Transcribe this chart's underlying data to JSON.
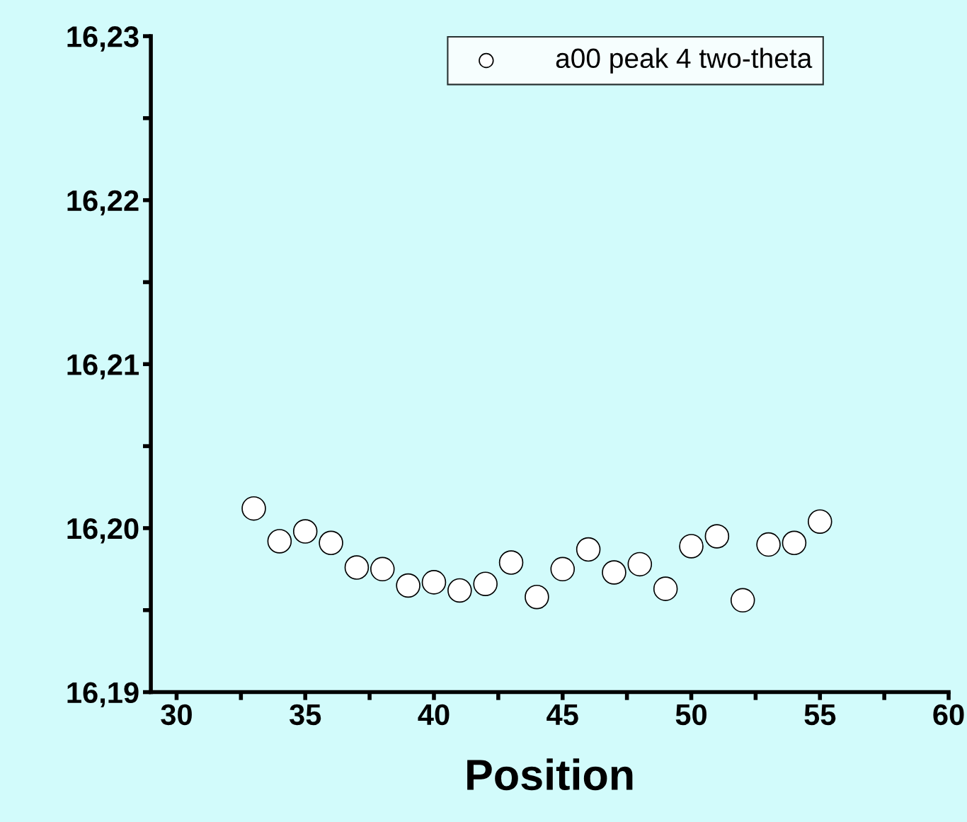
{
  "chart_data": {
    "type": "scatter",
    "xlabel": "Position",
    "x": [
      33,
      34,
      35,
      36,
      37,
      38,
      39,
      40,
      41,
      42,
      43,
      44,
      45,
      46,
      47,
      48,
      49,
      50,
      51,
      52,
      53,
      54,
      55
    ],
    "series": [
      {
        "name": "a00 peak 4 two-theta",
        "color": "#000000",
        "values": [
          16.2012,
          16.1992,
          16.1998,
          16.1991,
          16.1976,
          16.1975,
          16.1965,
          16.1967,
          16.1962,
          16.1966,
          16.1979,
          16.1958,
          16.1975,
          16.1987,
          16.1973,
          16.1978,
          16.1963,
          16.1989,
          16.1995,
          16.1956,
          16.199,
          16.1991,
          16.2004
        ]
      }
    ],
    "xlim": [
      29,
      60
    ],
    "xticks": [
      30,
      {
        "value": 32.5,
        "label": null
      },
      35,
      {
        "value": 37.5,
        "label": null
      },
      40,
      {
        "value": 42.5,
        "label": null
      },
      45,
      {
        "value": 47.5,
        "label": null
      },
      50,
      {
        "value": 52.5,
        "label": null
      },
      55,
      {
        "value": 57.5,
        "label": null
      },
      60
    ],
    "ylim": [
      16.19,
      16.23
    ],
    "yticks": [
      {
        "value": 16.19,
        "label": "16,19"
      },
      {
        "value": 16.195,
        "label": null
      },
      {
        "value": 16.2,
        "label": "16,20"
      },
      {
        "value": 16.205,
        "label": null
      },
      {
        "value": 16.21,
        "label": "16,21"
      },
      {
        "value": 16.215,
        "label": null
      },
      {
        "value": 16.22,
        "label": "16,22"
      },
      {
        "value": 16.225,
        "label": null
      },
      {
        "value": 16.23,
        "label": "16,23"
      }
    ],
    "marker": "circle",
    "grid": false,
    "legend": "top right"
  }
}
